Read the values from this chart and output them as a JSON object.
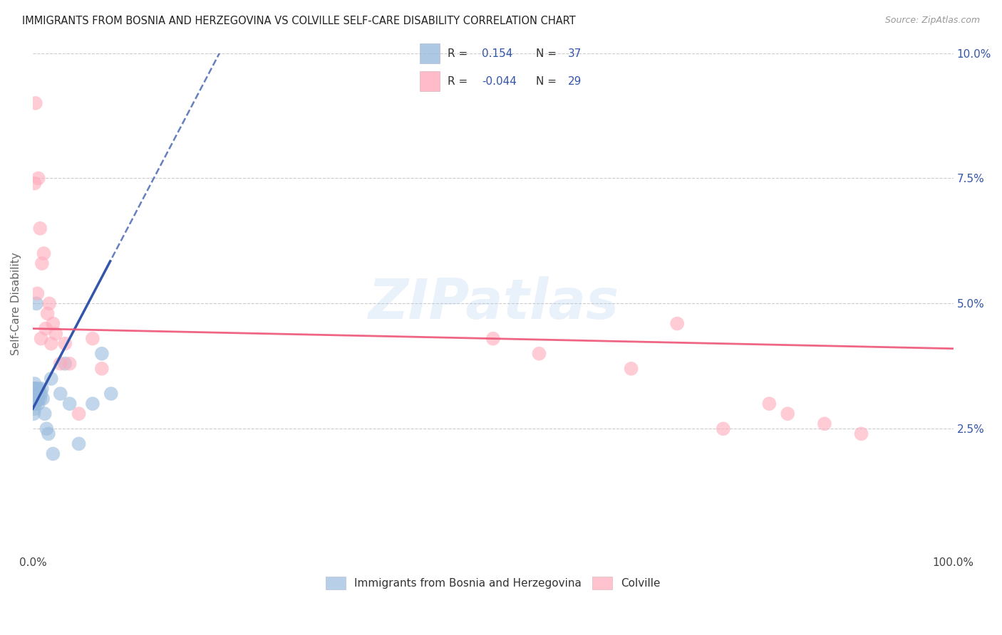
{
  "title": "IMMIGRANTS FROM BOSNIA AND HERZEGOVINA VS COLVILLE SELF-CARE DISABILITY CORRELATION CHART",
  "source": "Source: ZipAtlas.com",
  "ylabel": "Self-Care Disability",
  "right_yticks": [
    "2.5%",
    "5.0%",
    "7.5%",
    "10.0%"
  ],
  "right_ytick_vals": [
    0.025,
    0.05,
    0.075,
    0.1
  ],
  "legend_label1": "Immigrants from Bosnia and Herzegovina",
  "legend_label2": "Colville",
  "blue_color": "#99BBDD",
  "pink_color": "#FFAABC",
  "blue_line_color": "#3355AA",
  "pink_line_color": "#EE5577",
  "background": "#FFFFFF",
  "watermark": "ZIPatlas",
  "blue_x": [
    0.001,
    0.001,
    0.001,
    0.001,
    0.001,
    0.002,
    0.002,
    0.002,
    0.002,
    0.003,
    0.003,
    0.003,
    0.004,
    0.004,
    0.005,
    0.005,
    0.006,
    0.006,
    0.007,
    0.007,
    0.008,
    0.009,
    0.01,
    0.011,
    0.013,
    0.015,
    0.017,
    0.02,
    0.022,
    0.03,
    0.035,
    0.04,
    0.05,
    0.065,
    0.075,
    0.085,
    0.004
  ],
  "blue_y": [
    0.033,
    0.032,
    0.03,
    0.031,
    0.028,
    0.034,
    0.033,
    0.031,
    0.029,
    0.033,
    0.032,
    0.03,
    0.033,
    0.031,
    0.033,
    0.032,
    0.031,
    0.03,
    0.033,
    0.032,
    0.031,
    0.032,
    0.033,
    0.031,
    0.028,
    0.025,
    0.024,
    0.035,
    0.02,
    0.032,
    0.038,
    0.03,
    0.022,
    0.03,
    0.04,
    0.032,
    0.05
  ],
  "pink_x": [
    0.003,
    0.006,
    0.008,
    0.01,
    0.012,
    0.014,
    0.016,
    0.018,
    0.02,
    0.022,
    0.025,
    0.035,
    0.04,
    0.065,
    0.075,
    0.002,
    0.005,
    0.009,
    0.03,
    0.05,
    0.5,
    0.55,
    0.65,
    0.7,
    0.75,
    0.8,
    0.82,
    0.86,
    0.9
  ],
  "pink_y": [
    0.09,
    0.075,
    0.065,
    0.058,
    0.06,
    0.045,
    0.048,
    0.05,
    0.042,
    0.046,
    0.044,
    0.042,
    0.038,
    0.043,
    0.037,
    0.074,
    0.052,
    0.043,
    0.038,
    0.028,
    0.043,
    0.04,
    0.037,
    0.046,
    0.025,
    0.03,
    0.028,
    0.026,
    0.024
  ],
  "xlim": [
    0,
    1.0
  ],
  "ylim": [
    0,
    0.1
  ],
  "blue_reg_slope": 0.35,
  "blue_reg_intercept": 0.029,
  "pink_reg_slope": -0.004,
  "pink_reg_intercept": 0.045
}
